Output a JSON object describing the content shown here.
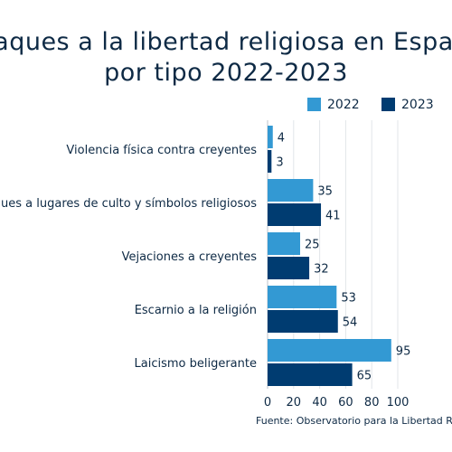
{
  "title": {
    "line1": "Ataques a la libertad religiosa en España",
    "line2": "por tipo 2022-2023"
  },
  "source": "Fuente: Observatorio para la Libertad Religiosa",
  "chart_data": {
    "type": "bar",
    "orientation": "horizontal",
    "categories": [
      "Violencia física contra creyentes",
      "Ataques a lugares de culto y símbolos religiosos",
      "Vejaciones a creyentes",
      "Escarnio a la religión",
      "Laicismo beligerante"
    ],
    "series": [
      {
        "name": "2022",
        "color": "#3399d3",
        "values": [
          4,
          35,
          25,
          53,
          95
        ]
      },
      {
        "name": "2023",
        "color": "#003c71",
        "values": [
          3,
          41,
          32,
          54,
          65
        ]
      }
    ],
    "x_ticks": [
      0,
      20,
      40,
      60,
      80,
      100
    ],
    "xlim": [
      0,
      100
    ],
    "grid": true,
    "legend_position": "top-right",
    "data_labels": true
  }
}
